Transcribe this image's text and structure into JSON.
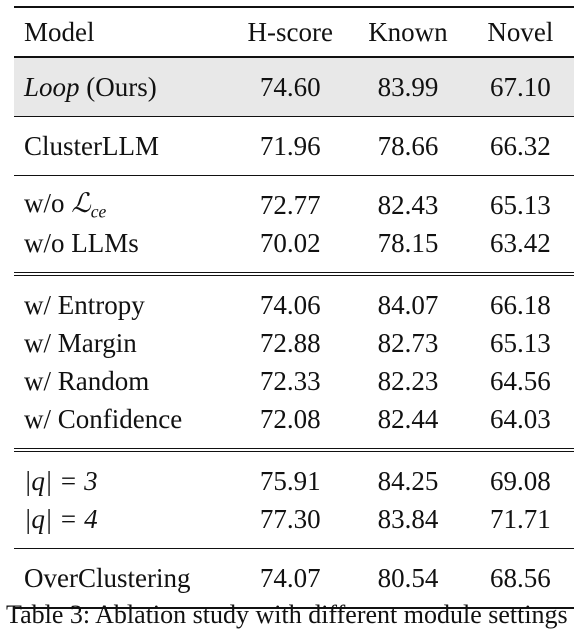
{
  "table": {
    "headers": [
      "Model",
      "H-score",
      "Known",
      "Novel"
    ],
    "groups": [
      {
        "separator": "top",
        "rows": [
          {
            "model": "Loop",
            "model_suffix": " (Ours)",
            "values": [
              "74.60",
              "83.99",
              "67.10"
            ],
            "highlight": true
          }
        ]
      },
      {
        "separator": "single",
        "rows": [
          {
            "model": "ClusterLLM",
            "values": [
              "71.96",
              "78.66",
              "66.32"
            ]
          }
        ]
      },
      {
        "separator": "single",
        "rows": [
          {
            "model": "w/o ",
            "model_math": "ℒ",
            "model_sub": "ce",
            "values": [
              "72.77",
              "82.43",
              "65.13"
            ]
          },
          {
            "model": "w/o LLMs",
            "values": [
              "70.02",
              "78.15",
              "63.42"
            ]
          }
        ]
      },
      {
        "separator": "double",
        "rows": [
          {
            "model": "w/ Entropy",
            "values": [
              "74.06",
              "84.07",
              "66.18"
            ]
          },
          {
            "model": "w/ Margin",
            "values": [
              "72.88",
              "82.73",
              "65.13"
            ]
          },
          {
            "model": "w/ Random",
            "values": [
              "72.33",
              "82.23",
              "64.56"
            ]
          },
          {
            "model": "w/ Confidence",
            "values": [
              "72.08",
              "82.44",
              "64.03"
            ]
          }
        ]
      },
      {
        "separator": "double",
        "rows": [
          {
            "model": "|q| = 3",
            "values": [
              "75.91",
              "84.25",
              "69.08"
            ]
          },
          {
            "model": "|q| = 4",
            "values": [
              "77.30",
              "83.84",
              "71.71"
            ]
          }
        ]
      },
      {
        "separator": "single",
        "rows": [
          {
            "model": "OverClustering",
            "values": [
              "74.07",
              "80.54",
              "68.56"
            ]
          }
        ]
      }
    ]
  },
  "caption": "Table 3: Ablation study with different module settings"
}
